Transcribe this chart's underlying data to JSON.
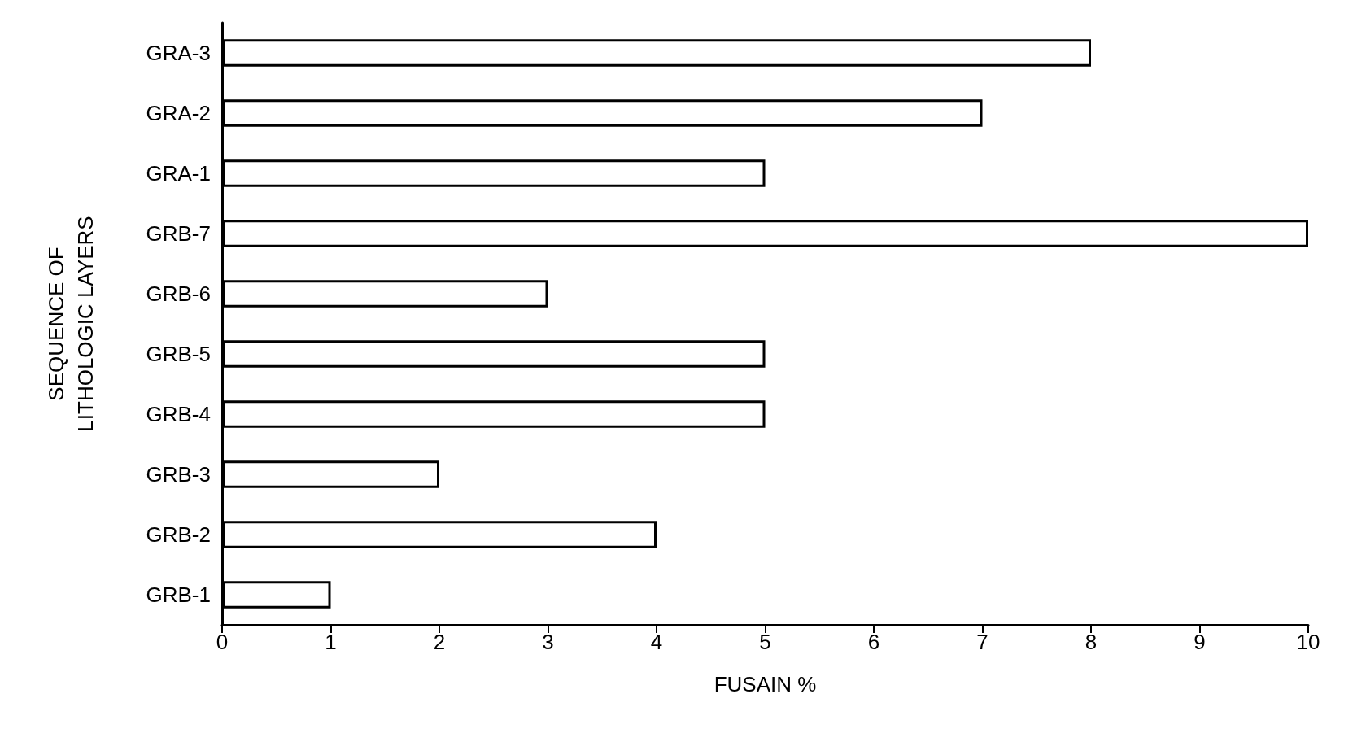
{
  "chart_data": {
    "type": "bar",
    "orientation": "horizontal",
    "categories": [
      "GRA-3",
      "GRA-2",
      "GRA-1",
      "GRB-7",
      "GRB-6",
      "GRB-5",
      "GRB-4",
      "GRB-3",
      "GRB-2",
      "GRB-1"
    ],
    "values": [
      8,
      7,
      5,
      10,
      3,
      5,
      5,
      2,
      4,
      1
    ],
    "color": "#ffffff",
    "xlabel": "FUSAIN %",
    "ylabel": "SEQUENCE OF\nLITHOLOGIC LAYERS",
    "xlim": [
      0,
      10
    ],
    "xticks": [
      0,
      1,
      2,
      3,
      4,
      5,
      6,
      7,
      8,
      9,
      10
    ],
    "grid": false
  }
}
